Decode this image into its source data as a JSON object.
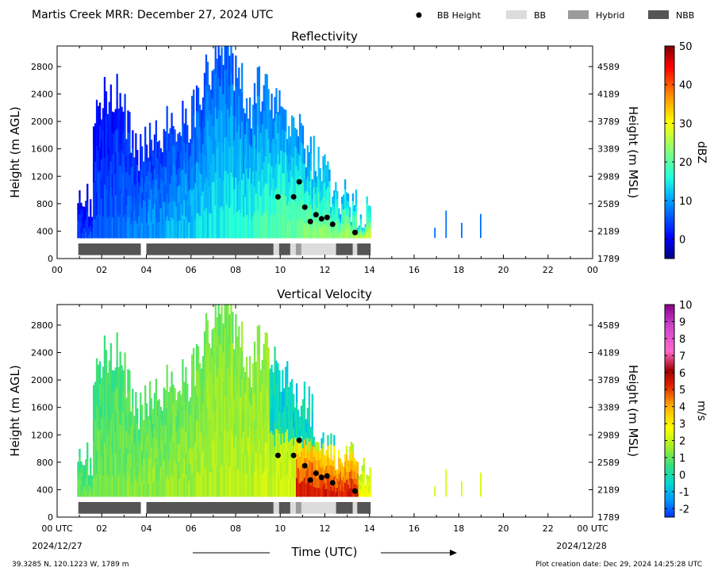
{
  "header": {
    "title": "Martis Creek MRR:  December 27, 2024 UTC",
    "legend": [
      {
        "label": "BB Height",
        "kind": "dot",
        "color": "#000000"
      },
      {
        "label": "BB",
        "kind": "box",
        "color": "#dcdcdc"
      },
      {
        "label": "Hybrid",
        "kind": "box",
        "color": "#9b9b9b"
      },
      {
        "label": "NBB",
        "kind": "box",
        "color": "#555555"
      }
    ]
  },
  "chart_data": [
    {
      "type": "heatmap",
      "title": "Reflectivity",
      "ylabel": "Height (m AGL)",
      "y2label": "Height (m MSL)",
      "xlim": [
        0,
        24
      ],
      "ylim": [
        0,
        3100
      ],
      "yticks": [
        0,
        400,
        800,
        1200,
        1600,
        2000,
        2400,
        2800
      ],
      "y2ticks": [
        "1789",
        "2189",
        "2589",
        "2989",
        "3389",
        "3789",
        "4189",
        "4589"
      ],
      "xticks": [
        "00",
        "02",
        "04",
        "06",
        "08",
        "10",
        "12",
        "14",
        "16",
        "18",
        "20",
        "22",
        "00"
      ],
      "colorbar": {
        "label": "dBZ",
        "min": -5,
        "max": 50,
        "ticks": [
          0,
          10,
          20,
          30,
          40,
          50
        ]
      },
      "bb_heights": [
        {
          "t": 9.9,
          "h": 900
        },
        {
          "t": 10.6,
          "h": 900
        },
        {
          "t": 10.85,
          "h": 1120
        },
        {
          "t": 11.1,
          "h": 750
        },
        {
          "t": 11.35,
          "h": 540
        },
        {
          "t": 11.6,
          "h": 640
        },
        {
          "t": 11.85,
          "h": 580
        },
        {
          "t": 12.1,
          "h": 600
        },
        {
          "t": 12.35,
          "h": 500
        },
        {
          "t": 13.35,
          "h": 380
        }
      ],
      "bands": [
        {
          "start": 0.95,
          "end": 3.75,
          "type": "NBB"
        },
        {
          "start": 4.0,
          "end": 9.7,
          "type": "NBB"
        },
        {
          "start": 9.7,
          "end": 9.95,
          "type": "BB"
        },
        {
          "start": 9.95,
          "end": 10.45,
          "type": "NBB"
        },
        {
          "start": 10.45,
          "end": 10.7,
          "type": "BB"
        },
        {
          "start": 10.7,
          "end": 10.95,
          "type": "Hybrid"
        },
        {
          "start": 10.95,
          "end": 12.5,
          "type": "BB"
        },
        {
          "start": 12.5,
          "end": 13.25,
          "type": "NBB"
        },
        {
          "start": 13.25,
          "end": 13.45,
          "type": "BB"
        },
        {
          "start": 13.45,
          "end": 14.05,
          "type": "NBB"
        }
      ]
    },
    {
      "type": "heatmap",
      "title": "Vertical Velocity",
      "ylabel": "Height (m AGL)",
      "y2label": "Height (m MSL)",
      "xlabel": "Time (UTC)",
      "xlim": [
        0,
        24
      ],
      "ylim": [
        0,
        3100
      ],
      "yticks": [
        0,
        400,
        800,
        1200,
        1600,
        2000,
        2400,
        2800
      ],
      "y2ticks": [
        "1789",
        "2189",
        "2589",
        "2989",
        "3389",
        "3789",
        "4189",
        "4589"
      ],
      "xticks": [
        "00 UTC",
        "02",
        "04",
        "06",
        "08",
        "10",
        "12",
        "14",
        "16",
        "18",
        "20",
        "22",
        "00 UTC"
      ],
      "xdates": {
        "start": "2024/12/27",
        "end": "2024/12/28"
      },
      "colorbar": {
        "label": "m/s",
        "min": -2.5,
        "max": 10,
        "ticks": [
          -2,
          -1,
          0,
          1,
          2,
          3,
          4,
          5,
          6,
          7,
          8,
          9,
          10
        ]
      },
      "bb_heights": [
        {
          "t": 9.9,
          "h": 900
        },
        {
          "t": 10.6,
          "h": 900
        },
        {
          "t": 10.85,
          "h": 1120
        },
        {
          "t": 11.1,
          "h": 750
        },
        {
          "t": 11.35,
          "h": 540
        },
        {
          "t": 11.6,
          "h": 640
        },
        {
          "t": 11.85,
          "h": 580
        },
        {
          "t": 12.1,
          "h": 600
        },
        {
          "t": 12.35,
          "h": 500
        },
        {
          "t": 13.35,
          "h": 380
        }
      ],
      "bands": [
        {
          "start": 0.95,
          "end": 3.75,
          "type": "NBB"
        },
        {
          "start": 4.0,
          "end": 9.7,
          "type": "NBB"
        },
        {
          "start": 9.7,
          "end": 9.95,
          "type": "BB"
        },
        {
          "start": 9.95,
          "end": 10.45,
          "type": "NBB"
        },
        {
          "start": 10.45,
          "end": 10.7,
          "type": "BB"
        },
        {
          "start": 10.7,
          "end": 10.95,
          "type": "Hybrid"
        },
        {
          "start": 10.95,
          "end": 12.5,
          "type": "BB"
        },
        {
          "start": 12.5,
          "end": 13.25,
          "type": "NBB"
        },
        {
          "start": 13.25,
          "end": 13.45,
          "type": "BB"
        },
        {
          "start": 13.45,
          "end": 14.05,
          "type": "NBB"
        }
      ]
    }
  ],
  "footer": {
    "location": "39.3285 N, 120.1223 W, 1789 m",
    "created": "Plot creation date: Dec 29, 2024 14:25:28 UTC"
  }
}
